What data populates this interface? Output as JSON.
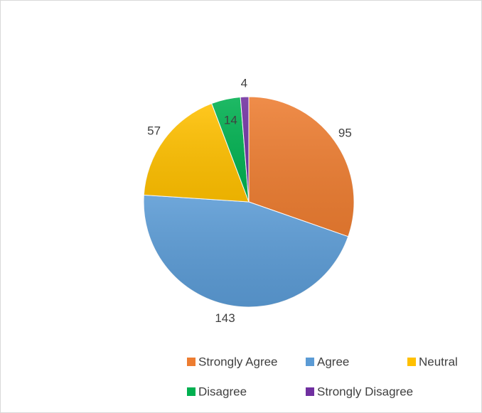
{
  "chart_data": {
    "type": "pie",
    "categories": [
      "Strongly Agree",
      "Agree",
      "Neutral",
      "Disagree",
      "Strongly Disagree"
    ],
    "values": [
      95,
      143,
      57,
      14,
      4
    ],
    "colors": [
      "#ed7d31",
      "#5b9bd5",
      "#ffc000",
      "#00b050",
      "#7030a0"
    ],
    "legend": "bottom"
  }
}
